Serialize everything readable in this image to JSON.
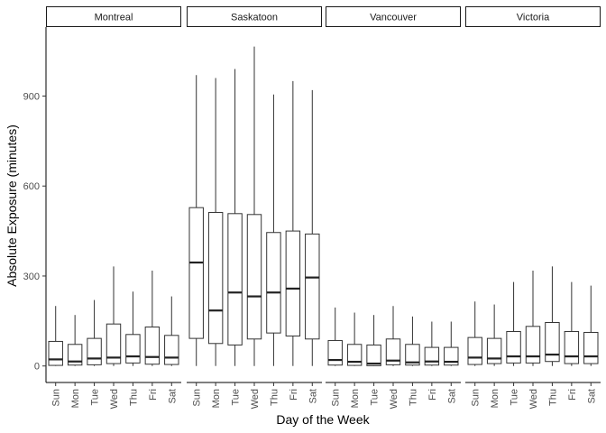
{
  "chart_data": {
    "type": "boxplot",
    "xlabel": "Day of the Week",
    "ylabel": "Absolute Exposure (minutes)",
    "ylim": [
      -55,
      1130
    ],
    "yticks": [
      0,
      300,
      600,
      900
    ],
    "categories": [
      "Sun",
      "Mon",
      "Tue",
      "Wed",
      "Thu",
      "Fri",
      "Sat"
    ],
    "grid": false,
    "legend": "none",
    "facets": [
      {
        "name": "Montreal",
        "boxes": [
          {
            "day": "Sun",
            "min": 0,
            "q1": 2,
            "median": 22,
            "q3": 82,
            "max": 200
          },
          {
            "day": "Mon",
            "min": 0,
            "q1": 3,
            "median": 15,
            "q3": 72,
            "max": 170
          },
          {
            "day": "Tue",
            "min": 0,
            "q1": 4,
            "median": 25,
            "q3": 92,
            "max": 220
          },
          {
            "day": "Wed",
            "min": 0,
            "q1": 8,
            "median": 28,
            "q3": 140,
            "max": 332
          },
          {
            "day": "Thu",
            "min": 0,
            "q1": 10,
            "median": 32,
            "q3": 105,
            "max": 248
          },
          {
            "day": "Fri",
            "min": 0,
            "q1": 6,
            "median": 30,
            "q3": 130,
            "max": 318
          },
          {
            "day": "Sat",
            "min": 0,
            "q1": 5,
            "median": 28,
            "q3": 102,
            "max": 232
          }
        ]
      },
      {
        "name": "Saskatoon",
        "boxes": [
          {
            "day": "Sun",
            "min": 0,
            "q1": 92,
            "median": 345,
            "q3": 528,
            "max": 970
          },
          {
            "day": "Mon",
            "min": 0,
            "q1": 75,
            "median": 185,
            "q3": 512,
            "max": 960
          },
          {
            "day": "Tue",
            "min": 0,
            "q1": 70,
            "median": 245,
            "q3": 508,
            "max": 990
          },
          {
            "day": "Wed",
            "min": 0,
            "q1": 90,
            "median": 232,
            "q3": 505,
            "max": 1065
          },
          {
            "day": "Thu",
            "min": 0,
            "q1": 110,
            "median": 245,
            "q3": 445,
            "max": 905
          },
          {
            "day": "Fri",
            "min": 0,
            "q1": 100,
            "median": 258,
            "q3": 450,
            "max": 950
          },
          {
            "day": "Sat",
            "min": 0,
            "q1": 90,
            "median": 295,
            "q3": 440,
            "max": 920
          }
        ]
      },
      {
        "name": "Vancouver",
        "boxes": [
          {
            "day": "Sun",
            "min": 0,
            "q1": 3,
            "median": 20,
            "q3": 85,
            "max": 195
          },
          {
            "day": "Mon",
            "min": 0,
            "q1": 2,
            "median": 14,
            "q3": 72,
            "max": 178
          },
          {
            "day": "Tue",
            "min": 0,
            "q1": 1,
            "median": 8,
            "q3": 70,
            "max": 170
          },
          {
            "day": "Wed",
            "min": 0,
            "q1": 4,
            "median": 18,
            "q3": 90,
            "max": 200
          },
          {
            "day": "Thu",
            "min": 0,
            "q1": 3,
            "median": 12,
            "q3": 72,
            "max": 165
          },
          {
            "day": "Fri",
            "min": 0,
            "q1": 3,
            "median": 15,
            "q3": 62,
            "max": 148
          },
          {
            "day": "Sat",
            "min": 0,
            "q1": 3,
            "median": 14,
            "q3": 62,
            "max": 148
          }
        ]
      },
      {
        "name": "Victoria",
        "boxes": [
          {
            "day": "Sun",
            "min": 0,
            "q1": 5,
            "median": 28,
            "q3": 95,
            "max": 215
          },
          {
            "day": "Mon",
            "min": 0,
            "q1": 8,
            "median": 25,
            "q3": 92,
            "max": 205
          },
          {
            "day": "Tue",
            "min": 0,
            "q1": 10,
            "median": 32,
            "q3": 115,
            "max": 280
          },
          {
            "day": "Wed",
            "min": 0,
            "q1": 10,
            "median": 32,
            "q3": 132,
            "max": 318
          },
          {
            "day": "Thu",
            "min": 0,
            "q1": 15,
            "median": 38,
            "q3": 145,
            "max": 332
          },
          {
            "day": "Fri",
            "min": 0,
            "q1": 8,
            "median": 32,
            "q3": 115,
            "max": 280
          },
          {
            "day": "Sat",
            "min": 0,
            "q1": 8,
            "median": 32,
            "q3": 112,
            "max": 268
          }
        ]
      }
    ]
  }
}
